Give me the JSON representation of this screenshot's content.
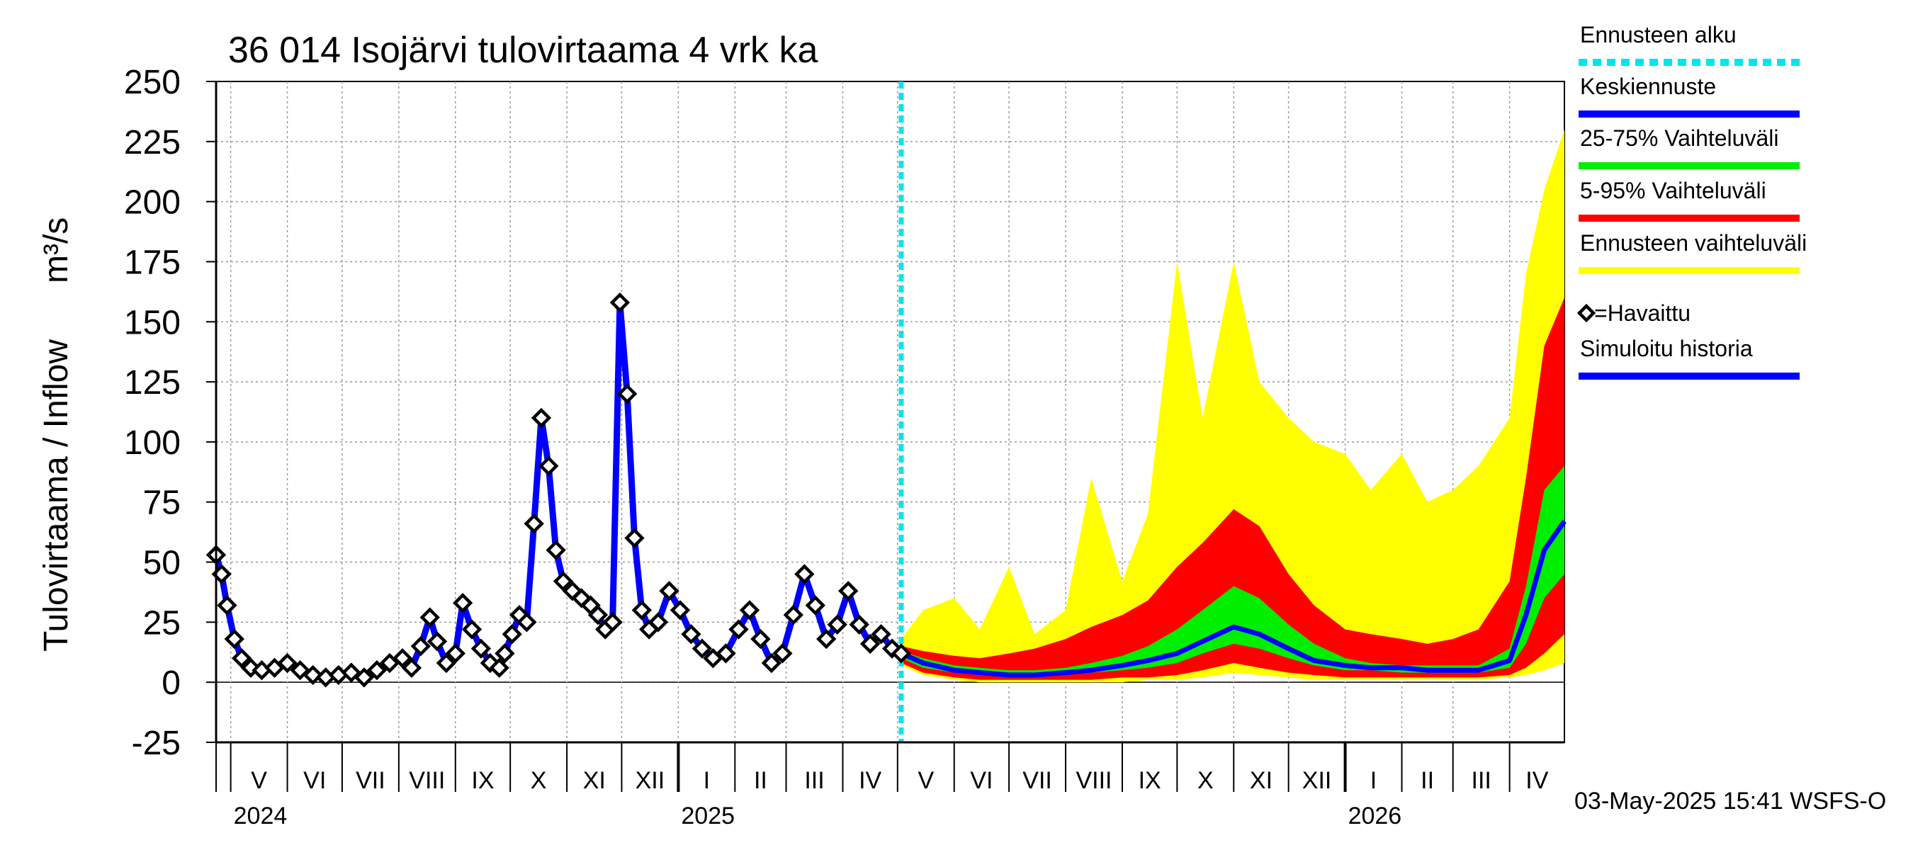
{
  "chart_data": {
    "type": "area",
    "title": "36 014 Isojärvi tulovirtaama 4 vrk ka",
    "ylabel": "Tulovirtaama / Inflow",
    "yunit": "m³/s",
    "ylim": [
      -25,
      250
    ],
    "yticks": [
      250,
      225,
      200,
      175,
      150,
      125,
      100,
      75,
      50,
      25,
      0,
      -25
    ],
    "xlim": [
      "2024-04-23",
      "2026-05-01"
    ],
    "forecast_start": "2025-05-03",
    "grid": true,
    "legend_position": "right",
    "months": [
      {
        "label": "V",
        "start": "2024-05-01"
      },
      {
        "label": "VI",
        "start": "2024-06-01"
      },
      {
        "label": "VII",
        "start": "2024-07-01"
      },
      {
        "label": "VIII",
        "start": "2024-08-01"
      },
      {
        "label": "IX",
        "start": "2024-09-01"
      },
      {
        "label": "X",
        "start": "2024-10-01"
      },
      {
        "label": "XI",
        "start": "2024-11-01"
      },
      {
        "label": "XII",
        "start": "2024-12-01"
      },
      {
        "label": "I",
        "start": "2025-01-01"
      },
      {
        "label": "II",
        "start": "2025-02-01"
      },
      {
        "label": "III",
        "start": "2025-03-01"
      },
      {
        "label": "IV",
        "start": "2025-04-01"
      },
      {
        "label": "V",
        "start": "2025-05-01"
      },
      {
        "label": "VI",
        "start": "2025-06-01"
      },
      {
        "label": "VII",
        "start": "2025-07-01"
      },
      {
        "label": "VIII",
        "start": "2025-08-01"
      },
      {
        "label": "IX",
        "start": "2025-09-01"
      },
      {
        "label": "X",
        "start": "2025-10-01"
      },
      {
        "label": "XI",
        "start": "2025-11-01"
      },
      {
        "label": "XII",
        "start": "2025-12-01"
      },
      {
        "label": "I",
        "start": "2026-01-01"
      },
      {
        "label": "II",
        "start": "2026-02-01"
      },
      {
        "label": "III",
        "start": "2026-03-01"
      },
      {
        "label": "IV",
        "start": "2026-04-01"
      }
    ],
    "years": [
      {
        "label": "2024",
        "date": "2024-05-01"
      },
      {
        "label": "2025",
        "date": "2025-01-01"
      },
      {
        "label": "2026",
        "date": "2026-01-01"
      }
    ],
    "observed": {
      "name": "=Havaittu",
      "x": [
        "2024-04-23",
        "2024-04-26",
        "2024-04-29",
        "2024-05-03",
        "2024-05-07",
        "2024-05-12",
        "2024-05-18",
        "2024-05-25",
        "2024-06-01",
        "2024-06-08",
        "2024-06-15",
        "2024-06-22",
        "2024-06-29",
        "2024-07-06",
        "2024-07-13",
        "2024-07-20",
        "2024-07-27",
        "2024-08-03",
        "2024-08-08",
        "2024-08-13",
        "2024-08-18",
        "2024-08-22",
        "2024-08-27",
        "2024-09-01",
        "2024-09-05",
        "2024-09-10",
        "2024-09-15",
        "2024-09-20",
        "2024-09-25",
        "2024-09-28",
        "2024-10-02",
        "2024-10-06",
        "2024-10-10",
        "2024-10-14",
        "2024-10-18",
        "2024-10-22",
        "2024-10-26",
        "2024-10-30",
        "2024-11-04",
        "2024-11-09",
        "2024-11-14",
        "2024-11-18",
        "2024-11-22",
        "2024-11-26",
        "2024-11-30",
        "2024-12-04",
        "2024-12-08",
        "2024-12-12",
        "2024-12-16",
        "2024-12-21",
        "2024-12-27",
        "2025-01-02",
        "2025-01-08",
        "2025-01-14",
        "2025-01-20",
        "2025-01-27",
        "2025-02-03",
        "2025-02-09",
        "2025-02-15",
        "2025-02-21",
        "2025-02-27",
        "2025-03-05",
        "2025-03-11",
        "2025-03-17",
        "2025-03-23",
        "2025-03-29",
        "2025-04-04",
        "2025-04-10",
        "2025-04-16",
        "2025-04-22",
        "2025-04-28",
        "2025-05-03"
      ],
      "y": [
        53,
        45,
        32,
        18,
        10,
        6,
        5,
        6,
        8,
        5,
        3,
        2,
        3,
        4,
        2,
        5,
        8,
        10,
        6,
        15,
        27,
        17,
        8,
        12,
        33,
        22,
        14,
        8,
        6,
        12,
        20,
        28,
        25,
        66,
        110,
        90,
        55,
        42,
        38,
        35,
        32,
        28,
        22,
        25,
        158,
        120,
        60,
        30,
        22,
        25,
        38,
        30,
        20,
        14,
        10,
        12,
        22,
        30,
        18,
        8,
        12,
        28,
        45,
        32,
        18,
        24,
        38,
        24,
        16,
        20,
        14,
        12
      ]
    },
    "simulated_history": {
      "name": "Simuloitu historia",
      "color": "#0000ff"
    },
    "forecast": {
      "x": [
        "2025-05-03",
        "2025-05-15",
        "2025-06-01",
        "2025-06-15",
        "2025-07-01",
        "2025-07-15",
        "2025-08-01",
        "2025-08-15",
        "2025-09-01",
        "2025-09-15",
        "2025-10-01",
        "2025-10-15",
        "2025-11-01",
        "2025-11-15",
        "2025-12-01",
        "2025-12-15",
        "2026-01-01",
        "2026-01-15",
        "2026-02-01",
        "2026-02-15",
        "2026-03-01",
        "2026-03-15",
        "2026-04-01",
        "2026-04-10",
        "2026-04-20",
        "2026-05-01"
      ],
      "median": [
        12,
        8,
        5,
        4,
        3,
        3,
        4,
        5,
        7,
        9,
        12,
        17,
        23,
        20,
        14,
        9,
        7,
        6,
        6,
        5,
        5,
        5,
        9,
        28,
        55,
        67
      ],
      "p25": [
        10,
        6,
        4,
        3,
        2,
        2,
        3,
        4,
        5,
        6,
        8,
        12,
        16,
        14,
        10,
        7,
        5,
        5,
        4,
        4,
        4,
        4,
        6,
        16,
        35,
        45
      ],
      "p75": [
        13,
        10,
        7,
        6,
        5,
        5,
        6,
        8,
        11,
        15,
        22,
        30,
        40,
        35,
        24,
        16,
        10,
        8,
        7,
        7,
        7,
        7,
        14,
        40,
        80,
        90
      ],
      "p5": [
        8,
        4,
        2,
        1,
        1,
        1,
        1,
        1,
        2,
        2,
        3,
        5,
        8,
        6,
        4,
        3,
        2,
        2,
        2,
        2,
        2,
        2,
        3,
        6,
        12,
        20
      ],
      "p95": [
        15,
        13,
        11,
        10,
        12,
        14,
        18,
        23,
        28,
        34,
        48,
        58,
        72,
        65,
        45,
        32,
        22,
        20,
        18,
        16,
        18,
        22,
        42,
        85,
        140,
        160
      ],
      "min": [
        7,
        3,
        1,
        0,
        0,
        0,
        0,
        0,
        0,
        1,
        1,
        2,
        4,
        3,
        2,
        1,
        1,
        1,
        1,
        1,
        1,
        1,
        2,
        3,
        5,
        8
      ],
      "max": [
        18,
        30,
        35,
        22,
        48,
        20,
        30,
        85,
        42,
        70,
        175,
        110,
        175,
        125,
        110,
        100,
        95,
        80,
        95,
        75,
        80,
        90,
        110,
        170,
        205,
        230
      ]
    },
    "legend": [
      {
        "label": "Ennusteen alku",
        "color": "#00e5ee",
        "style": "dashed"
      },
      {
        "label": "Keskiennuste",
        "color": "#0000ff",
        "style": "line"
      },
      {
        "label": "25-75% Vaihteluväli",
        "color": "#00ee00",
        "style": "line"
      },
      {
        "label": "5-95% Vaihteluväli",
        "color": "#ff0000",
        "style": "line"
      },
      {
        "label": "Ennusteen vaihteluväli",
        "color": "#ffff00",
        "style": "line"
      },
      {
        "label": "=Havaittu",
        "color": "#000000",
        "style": "diamond"
      },
      {
        "label": "Simuloitu historia",
        "color": "#0000ff",
        "style": "line"
      }
    ],
    "footer": "03-May-2025 15:41 WSFS-O"
  },
  "colors": {
    "median": "#0000ff",
    "iqr": "#00ee00",
    "p5_95": "#ff0000",
    "range": "#ffff00",
    "forecast_start": "#00e5ee",
    "grid": "#999999",
    "axis": "#000000"
  }
}
